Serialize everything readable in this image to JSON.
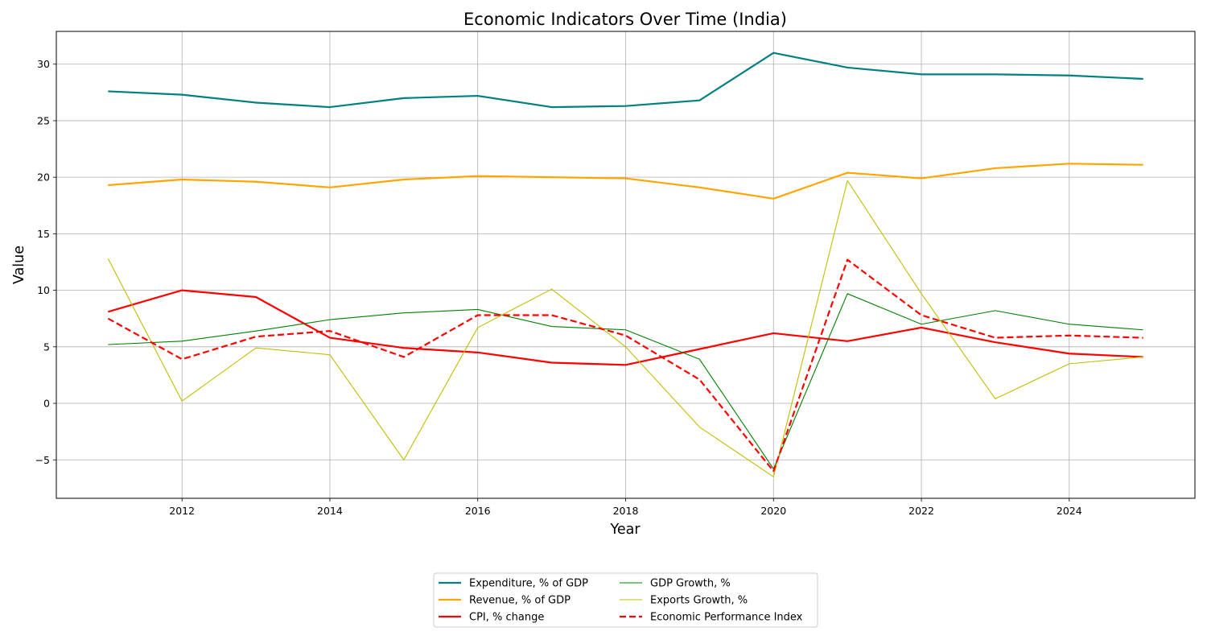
{
  "chart_data": {
    "type": "line",
    "title": "Economic Indicators Over Time (India)",
    "xlabel": "Year",
    "ylabel": "Value",
    "xlim": [
      2010.3,
      2025.7
    ],
    "ylim": [
      -8.4,
      32.9
    ],
    "xticks": [
      2012,
      2014,
      2016,
      2018,
      2020,
      2022,
      2024
    ],
    "yticks": [
      -5,
      0,
      5,
      10,
      15,
      20,
      25,
      30
    ],
    "grid": true,
    "legend_position": "below-center",
    "x": [
      2011,
      2012,
      2013,
      2014,
      2015,
      2016,
      2017,
      2018,
      2019,
      2020,
      2021,
      2022,
      2023,
      2024,
      2025
    ],
    "series": [
      {
        "name": "Expenditure, % of GDP",
        "color": "#008080",
        "style": "solid",
        "weight": "thick",
        "values": [
          27.6,
          27.3,
          26.6,
          26.2,
          27.0,
          27.2,
          26.2,
          26.3,
          26.8,
          31.0,
          29.7,
          29.1,
          29.1,
          29.0,
          28.7
        ]
      },
      {
        "name": "Revenue, % of GDP",
        "color": "#ffa500",
        "style": "solid",
        "weight": "thick",
        "values": [
          19.3,
          19.8,
          19.6,
          19.1,
          19.8,
          20.1,
          20.0,
          19.9,
          19.1,
          18.1,
          20.4,
          19.9,
          20.8,
          21.2,
          21.1
        ]
      },
      {
        "name": "CPI, % change",
        "color": "#ff0000",
        "style": "solid",
        "weight": "thick",
        "values": [
          8.1,
          10.0,
          9.4,
          5.8,
          4.9,
          4.5,
          3.6,
          3.4,
          4.8,
          6.2,
          5.5,
          6.7,
          5.4,
          4.4,
          4.1
        ]
      },
      {
        "name": "GDP Growth, %",
        "color": "#008000",
        "style": "solid",
        "weight": "thin",
        "values": [
          5.2,
          5.5,
          6.4,
          7.4,
          8.0,
          8.3,
          6.8,
          6.5,
          3.9,
          -5.8,
          9.7,
          7.0,
          8.2,
          7.0,
          6.5
        ]
      },
      {
        "name": "Exports Growth, %",
        "color": "#bfbf00",
        "style": "solid",
        "weight": "thin",
        "values": [
          12.8,
          0.2,
          4.9,
          4.3,
          -5.0,
          6.7,
          10.1,
          5.0,
          -2.1,
          -6.5,
          19.7,
          9.7,
          0.4,
          3.5,
          4.1
        ]
      },
      {
        "name": "Economic Performance Index",
        "color": "#ff0000",
        "style": "dashed",
        "weight": "thick",
        "values": [
          7.5,
          3.9,
          5.9,
          6.4,
          4.1,
          7.8,
          7.8,
          6.0,
          2.1,
          -6.0,
          12.7,
          7.8,
          5.8,
          6.0,
          5.8
        ]
      }
    ]
  }
}
